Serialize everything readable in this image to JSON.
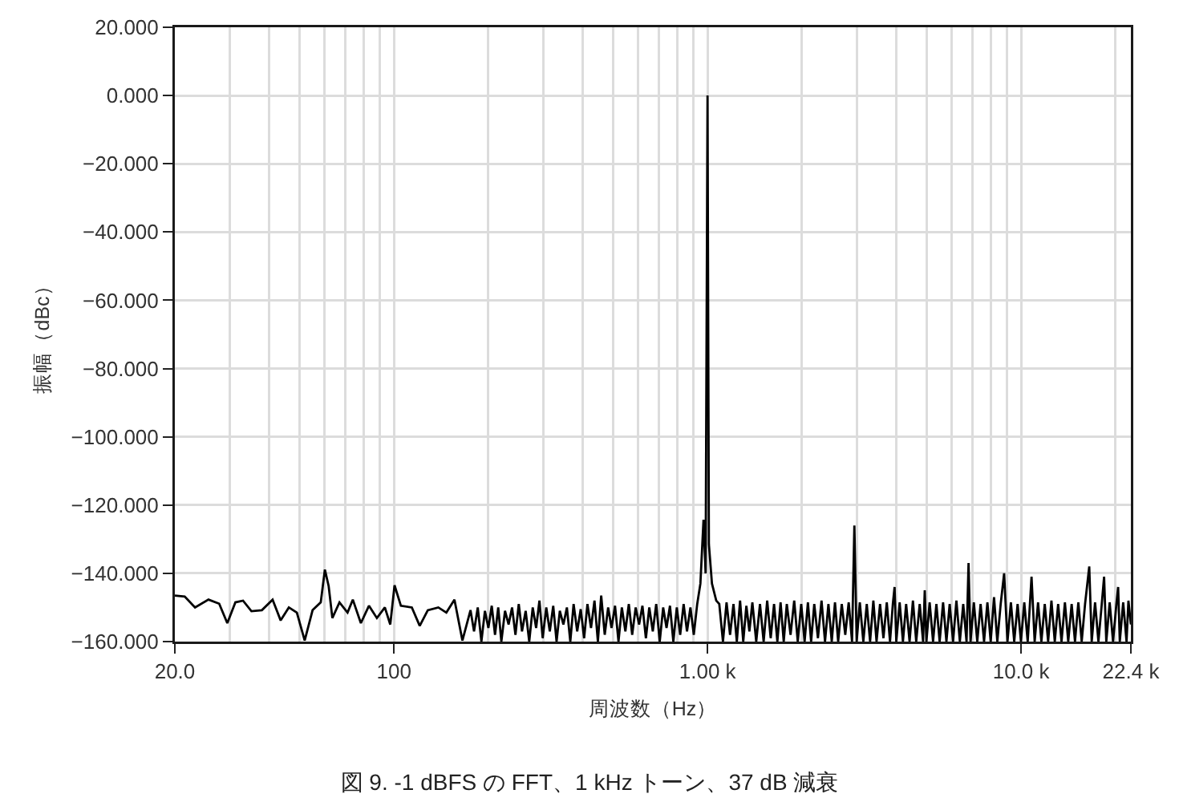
{
  "chart_data": {
    "type": "line",
    "title": "図 9. -1 dBFS の FFT、1 kHz トーン、37 dB 減衰",
    "xlabel": "周波数（Hz）",
    "ylabel": "振幅（dBc）",
    "log": "x",
    "grid": true,
    "line_style": "solid",
    "color": "#000000",
    "x": [
      20,
      21.5,
      23.2,
      25.6,
      27.7,
      29.4,
      31.2,
      33,
      35.1,
      37.9,
      41,
      43.5,
      46.2,
      49,
      51.9,
      55,
      58.4,
      60.2,
      61.9,
      63.6,
      67,
      71.1,
      73.9,
      78.4,
      83.2,
      88.2,
      93.5,
      97.3,
      100.4,
      105.2,
      114,
      120.8,
      128.2,
      138.5,
      146.9,
      155.9,
      165.3,
      175.4,
      180,
      185,
      190,
      195,
      200,
      205,
      210,
      215,
      220,
      226,
      232,
      238,
      244,
      250,
      256,
      263,
      270,
      277,
      284,
      291,
      298,
      306,
      314,
      322,
      330,
      338,
      347,
      356,
      365,
      374,
      384,
      394,
      404,
      414,
      425,
      436,
      447,
      458,
      470,
      482,
      494,
      507,
      520,
      533,
      547,
      561,
      575,
      590,
      605,
      620,
      636,
      652,
      669,
      686,
      704,
      722,
      740,
      759,
      778,
      798,
      818,
      839,
      860,
      882,
      904,
      927,
      949,
      971,
      986,
      1000,
      1010,
      1033,
      1066,
      1090,
      1120,
      1150,
      1180,
      1210,
      1240,
      1270,
      1300,
      1330,
      1360,
      1390,
      1430,
      1470,
      1510,
      1550,
      1590,
      1630,
      1670,
      1710,
      1750,
      1790,
      1840,
      1890,
      1940,
      1990,
      2040,
      2090,
      2140,
      2190,
      2250,
      2310,
      2370,
      2430,
      2490,
      2550,
      2610,
      2680,
      2750,
      2820,
      2890,
      2940,
      2990,
      3060,
      3140,
      3220,
      3300,
      3380,
      3460,
      3550,
      3640,
      3730,
      3820,
      3900,
      3950,
      4000,
      4100,
      4200,
      4300,
      4410,
      4520,
      4630,
      4750,
      4870,
      4930,
      4990,
      5110,
      5240,
      5370,
      5500,
      5640,
      5780,
      5920,
      6070,
      6220,
      6380,
      6540,
      6700,
      6800,
      6900,
      7070,
      7250,
      7430,
      7620,
      7810,
      8000,
      8200,
      8400,
      8610,
      8830,
      9050,
      9280,
      9510,
      9750,
      9990,
      10240,
      10500,
      10800,
      11050,
      11330,
      11610,
      11900,
      12200,
      12500,
      12810,
      13130,
      13460,
      13800,
      14140,
      14500,
      14860,
      15230,
      15610,
      16000,
      16500,
      16800,
      17220,
      17650,
      18090,
      18400,
      18700,
      19170,
      19650,
      20140,
      20400,
      20650,
      21170,
      21700,
      22000,
      22400
    ],
    "values": [
      -146.5,
      -146.8,
      -150,
      -147.7,
      -148.9,
      -154.6,
      -148.5,
      -148,
      -151.1,
      -150.8,
      -147.7,
      -153.8,
      -150,
      -151.5,
      -159.7,
      -150.8,
      -148.5,
      -138.9,
      -143.8,
      -153.1,
      -148.5,
      -151.5,
      -147.7,
      -154.6,
      -149.5,
      -153.1,
      -150,
      -155,
      -143.5,
      -149.5,
      -150,
      -155.4,
      -150.8,
      -150,
      -151.5,
      -147.7,
      -159.7,
      -150.8,
      -157,
      -150,
      -160,
      -151,
      -156,
      -149.5,
      -158,
      -150,
      -160,
      -151,
      -155,
      -150,
      -158,
      -149,
      -157,
      -151,
      -160,
      -150,
      -156,
      -148,
      -159,
      -150,
      -157,
      -149.5,
      -160,
      -151,
      -155,
      -150,
      -160,
      -149,
      -157,
      -150.5,
      -159,
      -149,
      -156,
      -148,
      -160,
      -146.5,
      -158,
      -150,
      -156,
      -149.5,
      -160,
      -150,
      -157,
      -149,
      -158,
      -150,
      -155,
      -149.5,
      -159,
      -150,
      -157,
      -149,
      -160,
      -150,
      -156,
      -149.5,
      -160,
      -150,
      -158,
      -149,
      -157,
      -150,
      -158,
      -149,
      -143,
      -124.3,
      -140,
      0,
      -131.5,
      -143,
      -148,
      -149,
      -160,
      -148.5,
      -158,
      -149,
      -160,
      -148,
      -160,
      -149.5,
      -157,
      -148.5,
      -160,
      -149,
      -160,
      -148,
      -159,
      -149,
      -160,
      -148.5,
      -160,
      -149,
      -158,
      -148,
      -160,
      -149,
      -160,
      -148.5,
      -160,
      -149,
      -159,
      -148,
      -160,
      -149,
      -160,
      -148.5,
      -160,
      -149,
      -158,
      -148.5,
      -160,
      -126,
      -160,
      -148.5,
      -160,
      -149,
      -160,
      -148,
      -160,
      -149,
      -159,
      -148.5,
      -160,
      -149,
      -144,
      -160,
      -148.5,
      -160,
      -149,
      -160,
      -148,
      -160,
      -149,
      -160,
      -145,
      -160,
      -148.5,
      -160,
      -149,
      -160,
      -148.5,
      -160,
      -149,
      -160,
      -148,
      -160,
      -149,
      -160,
      -137,
      -160,
      -148.5,
      -160,
      -149,
      -160,
      -148.5,
      -160,
      -147,
      -160,
      -149,
      -140,
      -160,
      -148.5,
      -160,
      -149,
      -160,
      -148.5,
      -160,
      -141,
      -160,
      -148.5,
      -160,
      -149,
      -160,
      -148,
      -160,
      -149,
      -160,
      -148.5,
      -160,
      -149,
      -160,
      -148.5,
      -160,
      -149,
      -138,
      -160,
      -148.5,
      -160,
      -149,
      -141,
      -160,
      -148.5,
      -160,
      -149,
      -144,
      -160,
      -148.5,
      -160,
      -148,
      -155
    ],
    "xlim": [
      20,
      22400
    ],
    "ylim": [
      -160,
      20
    ],
    "xticks": [
      {
        "value": 20,
        "label": "20.0"
      },
      {
        "value": 30,
        "label": null
      },
      {
        "value": 40,
        "label": null
      },
      {
        "value": 50,
        "label": null
      },
      {
        "value": 60,
        "label": null
      },
      {
        "value": 70,
        "label": null
      },
      {
        "value": 80,
        "label": null
      },
      {
        "value": 90,
        "label": null
      },
      100,
      {
        "value": 200,
        "label": null
      },
      {
        "value": 300,
        "label": null
      },
      {
        "value": 400,
        "label": null
      },
      {
        "value": 500,
        "label": null
      },
      {
        "value": 600,
        "label": null
      },
      {
        "value": 700,
        "label": null
      },
      {
        "value": 800,
        "label": null
      },
      {
        "value": 900,
        "label": null
      },
      {
        "value": 1000,
        "label": "1.00 k"
      },
      {
        "value": 2000,
        "label": null
      },
      {
        "value": 3000,
        "label": null
      },
      {
        "value": 4000,
        "label": null
      },
      {
        "value": 5000,
        "label": null
      },
      {
        "value": 6000,
        "label": null
      },
      {
        "value": 7000,
        "label": null
      },
      {
        "value": 8000,
        "label": null
      },
      {
        "value": 9000,
        "label": null
      },
      {
        "value": 10000,
        "label": "10.0 k"
      },
      {
        "value": 20000,
        "label": null
      },
      {
        "value": 22400,
        "label": "22.4 k"
      }
    ],
    "yticks": [
      {
        "value": 20,
        "label": "20.000"
      },
      {
        "value": 0,
        "label": "0.000"
      },
      {
        "value": -20,
        "label": "−20.000"
      },
      {
        "value": -40,
        "label": "−40.000"
      },
      {
        "value": -60,
        "label": "−60.000"
      },
      {
        "value": -80,
        "label": "−80.000"
      },
      {
        "value": -100,
        "label": "−100.000"
      },
      {
        "value": -120,
        "label": "−120.000"
      },
      {
        "value": -140,
        "label": "−140.000"
      },
      {
        "value": -160,
        "label": "−160.000"
      }
    ]
  }
}
